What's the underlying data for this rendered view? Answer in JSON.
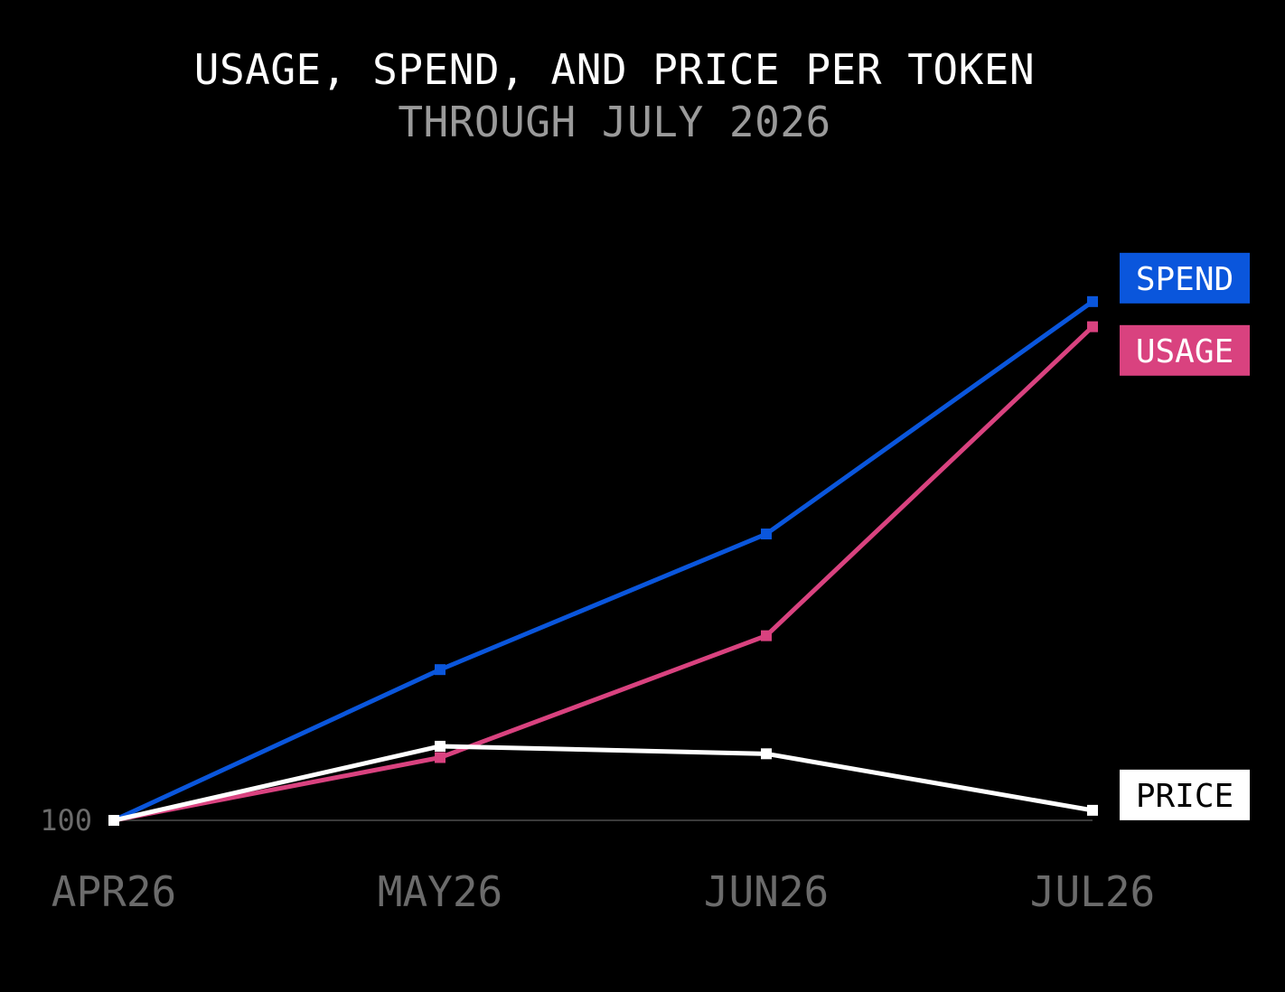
{
  "chart_data": {
    "type": "line",
    "title": "USAGE, SPEND, AND PRICE PER TOKEN",
    "subtitle": "THROUGH JULY 2026",
    "categories": [
      "APR26",
      "MAY26",
      "JUN26",
      "JUL26"
    ],
    "baseline": {
      "value": 100,
      "label": "100"
    },
    "ylim": [
      100,
      141
    ],
    "grid": false,
    "legend_placement": "right-inline",
    "series": [
      {
        "name": "SPEND",
        "color": "#0a56dc",
        "text_color": "#ffffff",
        "values": [
          100,
          112,
          122.8,
          141.3
        ]
      },
      {
        "name": "USAGE",
        "color": "#d9427f",
        "text_color": "#ffffff",
        "values": [
          100,
          105,
          114.7,
          139.3
        ]
      },
      {
        "name": "PRICE",
        "color": "#ffffff",
        "text_color": "#000000",
        "values": [
          100,
          105.9,
          105.3,
          100.8
        ]
      }
    ]
  }
}
